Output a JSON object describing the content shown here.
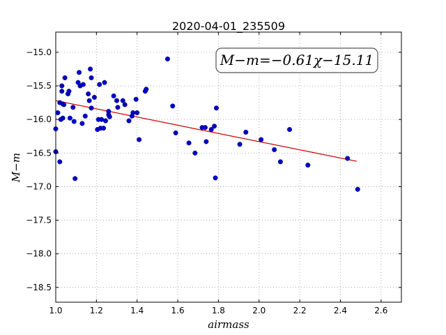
{
  "chart_data": {
    "type": "scatter",
    "title": "2020-04-01_235509",
    "xlabel": "airmass",
    "ylabel": "M−m",
    "xlim": [
      1.0,
      2.7
    ],
    "ylim": [
      -18.72,
      -14.7
    ],
    "grid": true,
    "x_ticks": [
      1.0,
      1.2,
      1.4,
      1.6,
      1.8,
      2.0,
      2.2,
      2.4,
      2.6
    ],
    "x_tick_labels": [
      "1.0",
      "1.2",
      "1.4",
      "1.6",
      "1.8",
      "2.0",
      "2.2",
      "2.4",
      "2.6"
    ],
    "y_ticks": [
      -15.0,
      -15.5,
      -16.0,
      -16.5,
      -17.0,
      -17.5,
      -18.0,
      -18.5
    ],
    "y_tick_labels": [
      "−15.0",
      "−15.5",
      "−16.0",
      "−16.5",
      "−17.0",
      "−17.5",
      "−18.0",
      "−18.5"
    ],
    "annotation": "M−m=−0.61χ−15.11",
    "colors": {
      "points": "#0000cc",
      "fit": "#cc0000",
      "grid": "#999999"
    },
    "fit": {
      "slope": -0.61,
      "intercept": -15.11,
      "x_range": [
        1.0,
        2.48
      ]
    },
    "points": {
      "x": [
        1.0,
        1.0,
        1.01,
        1.02,
        1.02,
        1.025,
        1.03,
        1.03,
        1.035,
        1.035,
        1.04,
        1.045,
        1.06,
        1.065,
        1.07,
        1.085,
        1.09,
        1.095,
        1.11,
        1.115,
        1.12,
        1.13,
        1.135,
        1.145,
        1.16,
        1.165,
        1.17,
        1.175,
        1.175,
        1.19,
        1.205,
        1.21,
        1.215,
        1.22,
        1.225,
        1.235,
        1.24,
        1.245,
        1.26,
        1.26,
        1.265,
        1.285,
        1.3,
        1.305,
        1.33,
        1.34,
        1.36,
        1.375,
        1.38,
        1.395,
        1.4,
        1.41,
        1.44,
        1.445,
        1.55,
        1.575,
        1.59,
        1.655,
        1.685,
        1.72,
        1.735,
        1.74,
        1.765,
        1.78,
        1.785,
        1.79,
        1.905,
        1.935,
        2.01,
        2.075,
        2.105,
        2.15,
        2.24,
        2.435,
        2.485
      ],
      "y": [
        -16.14,
        -16.48,
        -15.9,
        -15.75,
        -16.63,
        -16.0,
        -15.58,
        -15.5,
        -15.77,
        -15.98,
        -15.78,
        -15.38,
        -15.62,
        -15.58,
        -15.98,
        -15.82,
        -16.03,
        -16.88,
        -15.45,
        -15.3,
        -15.5,
        -16.06,
        -15.48,
        -15.95,
        -15.62,
        -15.72,
        -15.25,
        -15.38,
        -15.83,
        -15.67,
        -16.15,
        -16.0,
        -15.48,
        -16.13,
        -16.0,
        -16.13,
        -15.45,
        -16.02,
        -15.88,
        -15.93,
        -15.96,
        -15.65,
        -15.72,
        -15.82,
        -15.72,
        -15.78,
        -16.02,
        -15.95,
        -15.9,
        -15.7,
        -15.9,
        -16.3,
        -15.58,
        -15.55,
        -15.1,
        -15.8,
        -16.2,
        -16.35,
        -16.5,
        -16.12,
        -16.12,
        -16.33,
        -16.15,
        -16.1,
        -16.87,
        -15.83,
        -16.37,
        -16.19,
        -16.3,
        -16.45,
        -16.63,
        -16.15,
        -16.68,
        -16.58,
        -17.04
      ]
    }
  }
}
